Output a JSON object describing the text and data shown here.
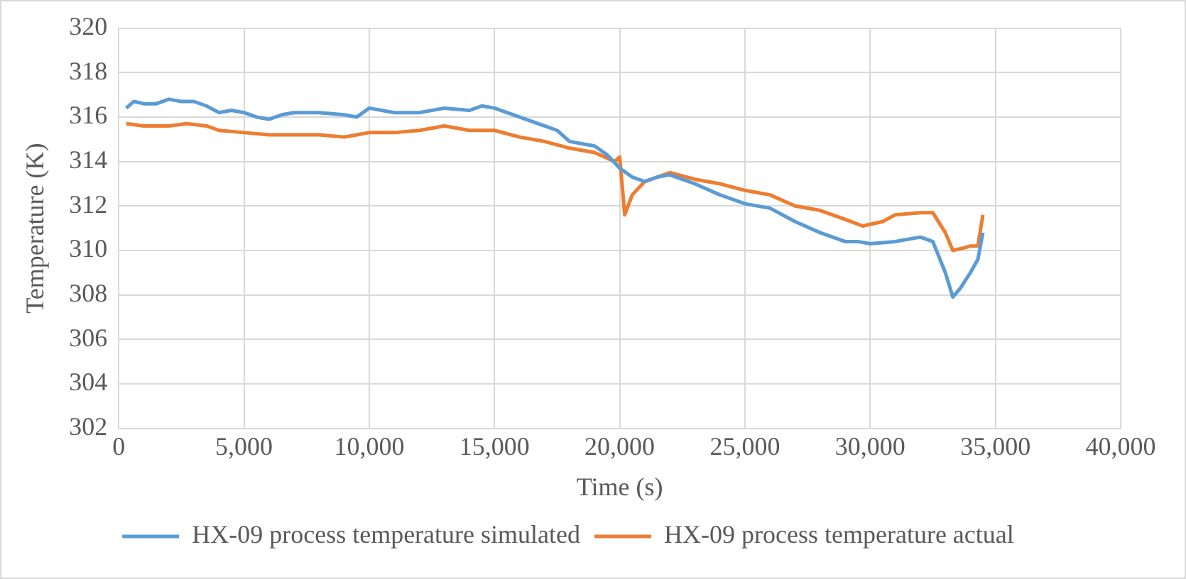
{
  "chart_data": {
    "type": "line",
    "xlabel": "Time (s)",
    "ylabel": "Temperature (K)",
    "xlim": [
      0,
      40000
    ],
    "xticks": [
      {
        "value": 0,
        "label": "0"
      },
      {
        "value": 5000,
        "label": "5,000"
      },
      {
        "value": 10000,
        "label": "10,000"
      },
      {
        "value": 15000,
        "label": "15,000"
      },
      {
        "value": 20000,
        "label": "20,000"
      },
      {
        "value": 25000,
        "label": "25,000"
      },
      {
        "value": 30000,
        "label": "30,000"
      },
      {
        "value": 35000,
        "label": "35,000"
      },
      {
        "value": 40000,
        "label": "40,000"
      }
    ],
    "ylim": [
      302,
      320
    ],
    "yticks": [
      302,
      304,
      306,
      308,
      310,
      312,
      314,
      316,
      318,
      320
    ],
    "grid": true,
    "legend": "bottom",
    "marker": "none",
    "line_style": "solid",
    "series": [
      {
        "name": "HX-09 process temperature simulated",
        "color": "#5b9bd5",
        "x": [
          300,
          600,
          1000,
          1500,
          2000,
          2500,
          3000,
          3500,
          4000,
          4500,
          5000,
          5500,
          6000,
          6500,
          7000,
          8000,
          9000,
          9500,
          10000,
          11000,
          12000,
          13000,
          14000,
          14500,
          15000,
          16000,
          17000,
          17500,
          18000,
          19000,
          19500,
          20000,
          20500,
          21000,
          21500,
          22000,
          23000,
          24000,
          25000,
          26000,
          27000,
          28000,
          29000,
          29500,
          30000,
          31000,
          32000,
          32500,
          33000,
          33300,
          33600,
          34000,
          34300,
          34500
        ],
        "values": [
          316.4,
          316.7,
          316.6,
          316.6,
          316.8,
          316.7,
          316.7,
          316.5,
          316.2,
          316.3,
          316.2,
          316.0,
          315.9,
          316.1,
          316.2,
          316.2,
          316.1,
          316.0,
          316.4,
          316.2,
          316.2,
          316.4,
          316.3,
          316.5,
          316.4,
          316.0,
          315.6,
          315.4,
          314.9,
          314.7,
          314.3,
          313.7,
          313.3,
          313.1,
          313.3,
          313.4,
          313.0,
          312.5,
          312.1,
          311.9,
          311.3,
          310.8,
          310.4,
          310.4,
          310.3,
          310.4,
          310.6,
          310.4,
          309.0,
          307.9,
          308.3,
          309.0,
          309.6,
          310.8
        ]
      },
      {
        "name": "HX-09 process temperature actual",
        "color": "#ed7d31",
        "x": [
          300,
          1000,
          2000,
          2700,
          3500,
          4000,
          5000,
          6000,
          7000,
          8000,
          9000,
          10000,
          11000,
          12000,
          13000,
          14000,
          15000,
          16000,
          17000,
          18000,
          19000,
          19800,
          20000,
          20200,
          20500,
          21000,
          22000,
          23000,
          24000,
          25000,
          26000,
          27000,
          28000,
          29000,
          29700,
          30500,
          31000,
          32000,
          32500,
          33000,
          33300,
          33700,
          34000,
          34300,
          34500
        ],
        "values": [
          315.7,
          315.6,
          315.6,
          315.7,
          315.6,
          315.4,
          315.3,
          315.2,
          315.2,
          315.2,
          315.1,
          315.3,
          315.3,
          315.4,
          315.6,
          315.4,
          315.4,
          315.1,
          314.9,
          314.6,
          314.4,
          314.0,
          314.2,
          311.6,
          312.5,
          313.1,
          313.5,
          313.2,
          313.0,
          312.7,
          312.5,
          312.0,
          311.8,
          311.4,
          311.1,
          311.3,
          311.6,
          311.7,
          311.7,
          310.8,
          310.0,
          310.1,
          310.2,
          310.2,
          311.6
        ]
      }
    ]
  }
}
